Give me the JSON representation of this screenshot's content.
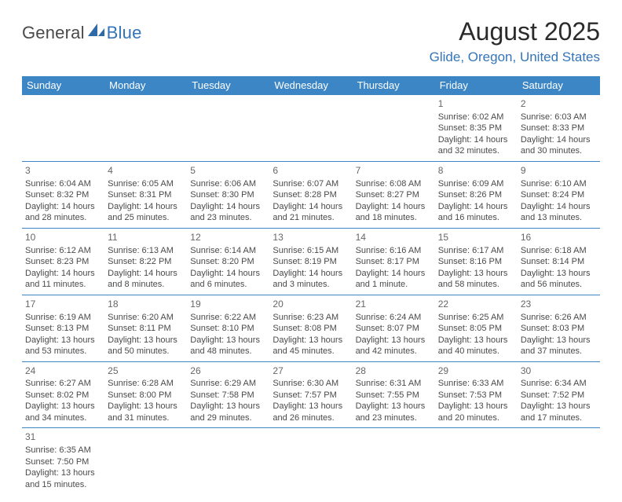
{
  "brand": {
    "part1": "General",
    "part2": "Blue"
  },
  "title": "August 2025",
  "subtitle": "Glide, Oregon, United States",
  "colors": {
    "header_bg": "#3d86c6",
    "header_fg": "#ffffff",
    "accent": "#3474b8",
    "text": "#4a4a4a",
    "rule": "#3d86c6",
    "background": "#ffffff"
  },
  "day_names": [
    "Sunday",
    "Monday",
    "Tuesday",
    "Wednesday",
    "Thursday",
    "Friday",
    "Saturday"
  ],
  "first_weekday_index": 5,
  "days": [
    {
      "n": 1,
      "sunrise": "6:02 AM",
      "sunset": "8:35 PM",
      "dl": "14 hours and 32 minutes."
    },
    {
      "n": 2,
      "sunrise": "6:03 AM",
      "sunset": "8:33 PM",
      "dl": "14 hours and 30 minutes."
    },
    {
      "n": 3,
      "sunrise": "6:04 AM",
      "sunset": "8:32 PM",
      "dl": "14 hours and 28 minutes."
    },
    {
      "n": 4,
      "sunrise": "6:05 AM",
      "sunset": "8:31 PM",
      "dl": "14 hours and 25 minutes."
    },
    {
      "n": 5,
      "sunrise": "6:06 AM",
      "sunset": "8:30 PM",
      "dl": "14 hours and 23 minutes."
    },
    {
      "n": 6,
      "sunrise": "6:07 AM",
      "sunset": "8:28 PM",
      "dl": "14 hours and 21 minutes."
    },
    {
      "n": 7,
      "sunrise": "6:08 AM",
      "sunset": "8:27 PM",
      "dl": "14 hours and 18 minutes."
    },
    {
      "n": 8,
      "sunrise": "6:09 AM",
      "sunset": "8:26 PM",
      "dl": "14 hours and 16 minutes."
    },
    {
      "n": 9,
      "sunrise": "6:10 AM",
      "sunset": "8:24 PM",
      "dl": "14 hours and 13 minutes."
    },
    {
      "n": 10,
      "sunrise": "6:12 AM",
      "sunset": "8:23 PM",
      "dl": "14 hours and 11 minutes."
    },
    {
      "n": 11,
      "sunrise": "6:13 AM",
      "sunset": "8:22 PM",
      "dl": "14 hours and 8 minutes."
    },
    {
      "n": 12,
      "sunrise": "6:14 AM",
      "sunset": "8:20 PM",
      "dl": "14 hours and 6 minutes."
    },
    {
      "n": 13,
      "sunrise": "6:15 AM",
      "sunset": "8:19 PM",
      "dl": "14 hours and 3 minutes."
    },
    {
      "n": 14,
      "sunrise": "6:16 AM",
      "sunset": "8:17 PM",
      "dl": "14 hours and 1 minute."
    },
    {
      "n": 15,
      "sunrise": "6:17 AM",
      "sunset": "8:16 PM",
      "dl": "13 hours and 58 minutes."
    },
    {
      "n": 16,
      "sunrise": "6:18 AM",
      "sunset": "8:14 PM",
      "dl": "13 hours and 56 minutes."
    },
    {
      "n": 17,
      "sunrise": "6:19 AM",
      "sunset": "8:13 PM",
      "dl": "13 hours and 53 minutes."
    },
    {
      "n": 18,
      "sunrise": "6:20 AM",
      "sunset": "8:11 PM",
      "dl": "13 hours and 50 minutes."
    },
    {
      "n": 19,
      "sunrise": "6:22 AM",
      "sunset": "8:10 PM",
      "dl": "13 hours and 48 minutes."
    },
    {
      "n": 20,
      "sunrise": "6:23 AM",
      "sunset": "8:08 PM",
      "dl": "13 hours and 45 minutes."
    },
    {
      "n": 21,
      "sunrise": "6:24 AM",
      "sunset": "8:07 PM",
      "dl": "13 hours and 42 minutes."
    },
    {
      "n": 22,
      "sunrise": "6:25 AM",
      "sunset": "8:05 PM",
      "dl": "13 hours and 40 minutes."
    },
    {
      "n": 23,
      "sunrise": "6:26 AM",
      "sunset": "8:03 PM",
      "dl": "13 hours and 37 minutes."
    },
    {
      "n": 24,
      "sunrise": "6:27 AM",
      "sunset": "8:02 PM",
      "dl": "13 hours and 34 minutes."
    },
    {
      "n": 25,
      "sunrise": "6:28 AM",
      "sunset": "8:00 PM",
      "dl": "13 hours and 31 minutes."
    },
    {
      "n": 26,
      "sunrise": "6:29 AM",
      "sunset": "7:58 PM",
      "dl": "13 hours and 29 minutes."
    },
    {
      "n": 27,
      "sunrise": "6:30 AM",
      "sunset": "7:57 PM",
      "dl": "13 hours and 26 minutes."
    },
    {
      "n": 28,
      "sunrise": "6:31 AM",
      "sunset": "7:55 PM",
      "dl": "13 hours and 23 minutes."
    },
    {
      "n": 29,
      "sunrise": "6:33 AM",
      "sunset": "7:53 PM",
      "dl": "13 hours and 20 minutes."
    },
    {
      "n": 30,
      "sunrise": "6:34 AM",
      "sunset": "7:52 PM",
      "dl": "13 hours and 17 minutes."
    },
    {
      "n": 31,
      "sunrise": "6:35 AM",
      "sunset": "7:50 PM",
      "dl": "13 hours and 15 minutes."
    }
  ],
  "labels": {
    "sunrise": "Sunrise:",
    "sunset": "Sunset:",
    "daylight": "Daylight:"
  }
}
